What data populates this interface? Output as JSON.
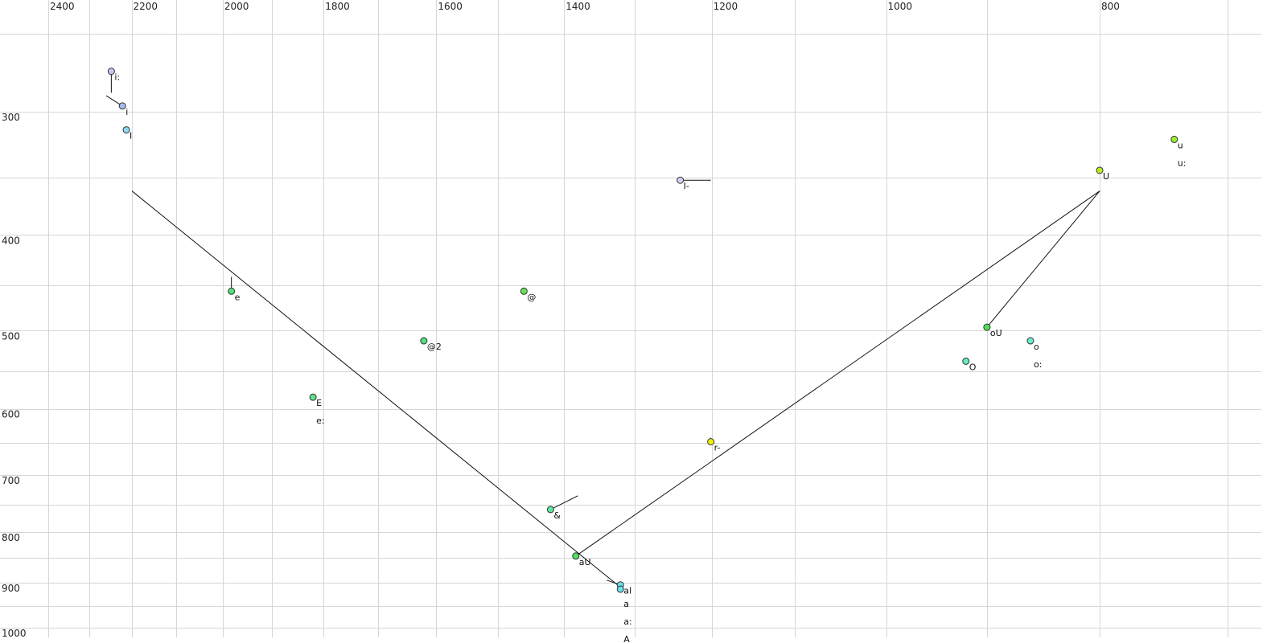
{
  "chart_data": {
    "type": "scatter",
    "title": "",
    "xlabel": "",
    "ylabel": "",
    "x_quantity": "F2",
    "y_quantity": "F1",
    "x_scale": "log",
    "y_scale": "log",
    "x_reversed": true,
    "y_reversed": true,
    "xlim": [
      2460,
      690
    ],
    "ylim": [
      231,
      1020
    ],
    "grid": true,
    "x_ticks": [
      2400,
      2200,
      2000,
      1800,
      1600,
      1400,
      1200,
      1000,
      800
    ],
    "x_grid": [
      2400,
      2300,
      2200,
      2100,
      2000,
      1900,
      1800,
      1700,
      1600,
      1500,
      1400,
      1300,
      1200,
      1100,
      1000,
      900,
      800,
      700
    ],
    "y_ticks": [
      300,
      400,
      500,
      600,
      700,
      800,
      900,
      1000
    ],
    "y_grid": [
      250,
      300,
      350,
      400,
      450,
      500,
      550,
      600,
      650,
      700,
      750,
      800,
      850,
      900,
      950,
      1000
    ],
    "points": [
      {
        "labels": [
          "i:"
        ],
        "f2": 2247,
        "f1": 273,
        "color": "#cbc3f2"
      },
      {
        "labels": [
          "i"
        ],
        "f2": 2221,
        "f1": 296,
        "color": "#a9b9f2"
      },
      {
        "labels": [
          "I"
        ],
        "f2": 2212,
        "f1": 313,
        "color": "#8fd6f2"
      },
      {
        "labels": [
          "e"
        ],
        "f2": 1982,
        "f1": 456,
        "color": "#55e07a"
      },
      {
        "labels": [
          "E",
          "e:"
        ],
        "f2": 1820,
        "f1": 584,
        "color": "#5ee28a"
      },
      {
        "labels": [
          "@2"
        ],
        "f2": 1621,
        "f1": 512,
        "color": "#50e080"
      },
      {
        "labels": [
          "@"
        ],
        "f2": 1460,
        "f1": 456,
        "color": "#66e258"
      },
      {
        "labels": [
          "&"
        ],
        "f2": 1420,
        "f1": 759,
        "color": "#5ee8a0"
      },
      {
        "labels": [
          "aU"
        ],
        "f2": 1383,
        "f1": 846,
        "color": "#50e060"
      },
      {
        "labels": [
          "aI"
        ],
        "f2": 1320,
        "f1": 905,
        "color": "#6ae2ea"
      },
      {
        "labels": [
          "a",
          "a:",
          "A"
        ],
        "f2": 1320,
        "f1": 914,
        "color": "#6ae2ea"
      },
      {
        "labels": [
          "r-"
        ],
        "f2": 1201,
        "f1": 648,
        "color": "#f0ee10"
      },
      {
        "labels": [
          "I-"
        ],
        "f2": 1240,
        "f1": 352,
        "color": "#d4cdf2"
      },
      {
        "labels": [
          "O"
        ],
        "f2": 920,
        "f1": 537,
        "color": "#66eeb8"
      },
      {
        "labels": [
          "oU"
        ],
        "f2": 900,
        "f1": 496,
        "color": "#50e050"
      },
      {
        "labels": [
          "o",
          "o:"
        ],
        "f2": 860,
        "f1": 512,
        "color": "#66eed2"
      },
      {
        "labels": [
          "U"
        ],
        "f2": 800,
        "f1": 344,
        "color": "#b8ee20"
      },
      {
        "labels": [
          "u",
          "u:"
        ],
        "f2": 740,
        "f1": 320,
        "color": "#9cee30"
      }
    ],
    "trajectories": [
      {
        "from": [
          2199,
          361
        ],
        "to": [
          1320,
          910
        ]
      },
      {
        "from": [
          1383,
          846
        ],
        "to": [
          800,
          361
        ]
      },
      {
        "from": [
          900,
          496
        ],
        "to": [
          800,
          361
        ]
      },
      {
        "from": [
          2247,
          273
        ],
        "to": [
          2247,
          287
        ]
      },
      {
        "from": [
          2259,
          289
        ],
        "to": [
          2221,
          296
        ]
      },
      {
        "from": [
          1982,
          441
        ],
        "to": [
          1982,
          456
        ]
      },
      {
        "from": [
          1420,
          759
        ],
        "to": [
          1380,
          735
        ]
      },
      {
        "from": [
          1240,
          352
        ],
        "to": [
          1201,
          352
        ]
      },
      {
        "from": [
          1339,
          895
        ],
        "to": [
          1320,
          905
        ]
      },
      {
        "from": [
          1201,
          642
        ],
        "to": [
          1201,
          648
        ]
      }
    ]
  }
}
